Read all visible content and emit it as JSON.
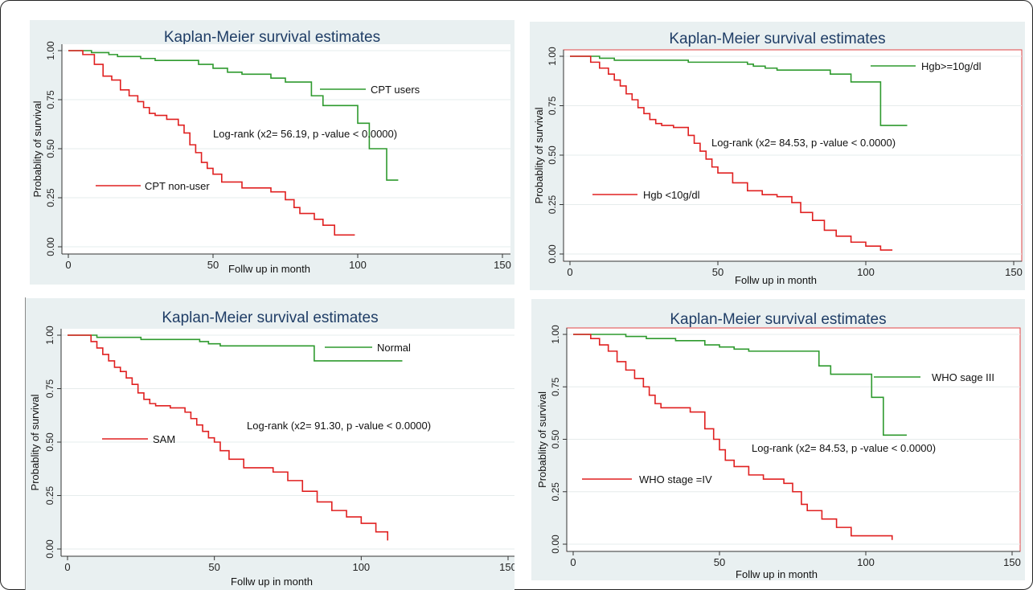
{
  "chart_data": [
    {
      "type": "line",
      "step": true,
      "title": "Kaplan-Meier survival estimates",
      "xlabel": "Follw up in month",
      "ylabel": "Probablity of survival",
      "xlim": [
        0,
        150
      ],
      "ylim": [
        0,
        1
      ],
      "xticks": [
        "0",
        "50",
        "100",
        "150"
      ],
      "yticks": [
        "0.00",
        "0.25",
        "0.50",
        "0.75",
        "1.00"
      ],
      "annotation": "Log-rank (x2= 56.19, p -value < 0.0000)",
      "series": [
        {
          "name": "CPT users",
          "color": "#2e9a2e",
          "x": [
            0,
            5,
            8,
            11,
            14,
            17,
            20,
            25,
            30,
            35,
            45,
            50,
            55,
            60,
            70,
            75,
            84,
            88,
            100,
            104,
            110,
            114
          ],
          "y": [
            1.0,
            1.0,
            0.99,
            0.99,
            0.98,
            0.97,
            0.97,
            0.96,
            0.95,
            0.95,
            0.93,
            0.91,
            0.89,
            0.88,
            0.86,
            0.84,
            0.77,
            0.72,
            0.63,
            0.5,
            0.34,
            0.34
          ]
        },
        {
          "name": "CPT non-user",
          "color": "#e02020",
          "x": [
            0,
            5,
            9,
            12,
            15,
            18,
            21,
            24,
            26,
            28,
            30,
            34,
            38,
            40,
            42,
            44,
            46,
            48,
            50,
            53,
            60,
            70,
            75,
            78,
            80,
            85,
            88,
            92,
            99
          ],
          "y": [
            1.0,
            0.98,
            0.93,
            0.87,
            0.85,
            0.8,
            0.77,
            0.74,
            0.71,
            0.68,
            0.67,
            0.65,
            0.62,
            0.58,
            0.52,
            0.48,
            0.43,
            0.4,
            0.37,
            0.33,
            0.3,
            0.28,
            0.24,
            0.2,
            0.17,
            0.14,
            0.11,
            0.06,
            0.06
          ]
        }
      ]
    },
    {
      "type": "line",
      "step": true,
      "title": "Kaplan-Meier survival estimates",
      "xlabel": "Follw up in month",
      "ylabel": "Probablity of survival",
      "xlim": [
        0,
        150
      ],
      "ylim": [
        0,
        1
      ],
      "xticks": [
        "0",
        "50",
        "100",
        "150"
      ],
      "yticks": [
        "0.00",
        "0.25",
        "0.50",
        "0.75",
        "1.00"
      ],
      "annotation": "Log-rank (x2= 84.53, p -value < 0.0000)",
      "series": [
        {
          "name": "Hgb>=10g/dl",
          "color": "#2e9a2e",
          "x": [
            0,
            5,
            10,
            15,
            22,
            30,
            40,
            55,
            60,
            62,
            66,
            70,
            75,
            88,
            95,
            105,
            110,
            114
          ],
          "y": [
            1.0,
            1.0,
            0.99,
            0.98,
            0.98,
            0.98,
            0.97,
            0.97,
            0.96,
            0.95,
            0.94,
            0.93,
            0.93,
            0.91,
            0.87,
            0.65,
            0.65,
            0.65
          ]
        },
        {
          "name": "Hgb <10g/dl",
          "color": "#e02020",
          "x": [
            0,
            7,
            10,
            13,
            15,
            17,
            19,
            21,
            23,
            25,
            27,
            29,
            31,
            35,
            40,
            42,
            44,
            46,
            48,
            50,
            55,
            60,
            65,
            70,
            75,
            78,
            82,
            86,
            90,
            95,
            100,
            105,
            109
          ],
          "y": [
            1.0,
            0.97,
            0.94,
            0.91,
            0.88,
            0.85,
            0.81,
            0.78,
            0.74,
            0.71,
            0.68,
            0.66,
            0.65,
            0.64,
            0.6,
            0.56,
            0.52,
            0.48,
            0.44,
            0.41,
            0.36,
            0.32,
            0.3,
            0.29,
            0.26,
            0.21,
            0.17,
            0.12,
            0.09,
            0.06,
            0.04,
            0.02,
            0.02
          ]
        }
      ]
    },
    {
      "type": "line",
      "step": true,
      "title": "Kaplan-Meier survival estimates",
      "xlabel": "Follw up in month",
      "ylabel": "Probablity of survival",
      "xlim": [
        0,
        150
      ],
      "ylim": [
        0,
        1
      ],
      "xticks": [
        "0",
        "50",
        "100",
        "150"
      ],
      "yticks": [
        "0.00",
        "0.25",
        "0.50",
        "0.75",
        "1.00"
      ],
      "annotation": "Log-rank (x2= 91.30, p -value < 0.0000)",
      "series": [
        {
          "name": "Normal",
          "color": "#2e9a2e",
          "x": [
            0,
            10,
            18,
            25,
            35,
            45,
            48,
            52,
            55,
            65,
            75,
            84,
            90,
            100,
            114
          ],
          "y": [
            1.0,
            0.99,
            0.99,
            0.98,
            0.98,
            0.97,
            0.96,
            0.95,
            0.95,
            0.95,
            0.95,
            0.88,
            0.88,
            0.88,
            0.88
          ]
        },
        {
          "name": "SAM",
          "color": "#e02020",
          "x": [
            0,
            8,
            10,
            12,
            14,
            16,
            18,
            20,
            22,
            24,
            26,
            28,
            30,
            35,
            40,
            42,
            44,
            46,
            48,
            50,
            52,
            55,
            60,
            70,
            75,
            80,
            85,
            90,
            95,
            100,
            105,
            109
          ],
          "y": [
            1.0,
            0.97,
            0.94,
            0.91,
            0.88,
            0.85,
            0.83,
            0.8,
            0.77,
            0.73,
            0.7,
            0.68,
            0.67,
            0.66,
            0.64,
            0.61,
            0.58,
            0.55,
            0.52,
            0.5,
            0.46,
            0.42,
            0.38,
            0.36,
            0.32,
            0.27,
            0.22,
            0.18,
            0.15,
            0.12,
            0.08,
            0.04
          ]
        }
      ]
    },
    {
      "type": "line",
      "step": true,
      "title": "Kaplan-Meier survival estimates",
      "xlabel": "Follw up in month",
      "ylabel": "Probablity of survival",
      "xlim": [
        0,
        150
      ],
      "ylim": [
        0,
        1
      ],
      "xticks": [
        "0",
        "50",
        "100",
        "150"
      ],
      "yticks": [
        "0.00",
        "0.25",
        "0.50",
        "0.75",
        "1.00"
      ],
      "annotation": "Log-rank (x2= 84.53, p -value < 0.0000)",
      "series": [
        {
          "name": "WHO sage III",
          "color": "#2e9a2e",
          "x": [
            0,
            12,
            18,
            25,
            35,
            45,
            50,
            55,
            60,
            70,
            80,
            84,
            88,
            97,
            102,
            106,
            110,
            114
          ],
          "y": [
            1.0,
            1.0,
            0.99,
            0.98,
            0.97,
            0.95,
            0.94,
            0.93,
            0.92,
            0.92,
            0.92,
            0.85,
            0.81,
            0.81,
            0.7,
            0.52,
            0.52,
            0.52
          ]
        },
        {
          "name": "WHO stage =IV",
          "color": "#e02020",
          "x": [
            0,
            6,
            9,
            12,
            15,
            18,
            21,
            24,
            26,
            28,
            30,
            40,
            45,
            48,
            50,
            52,
            55,
            60,
            65,
            72,
            75,
            78,
            80,
            85,
            90,
            95,
            100,
            109
          ],
          "y": [
            1.0,
            0.98,
            0.95,
            0.92,
            0.87,
            0.83,
            0.79,
            0.75,
            0.71,
            0.67,
            0.65,
            0.63,
            0.55,
            0.5,
            0.45,
            0.4,
            0.37,
            0.33,
            0.31,
            0.29,
            0.25,
            0.19,
            0.16,
            0.12,
            0.08,
            0.04,
            0.04,
            0.02
          ]
        }
      ]
    }
  ]
}
